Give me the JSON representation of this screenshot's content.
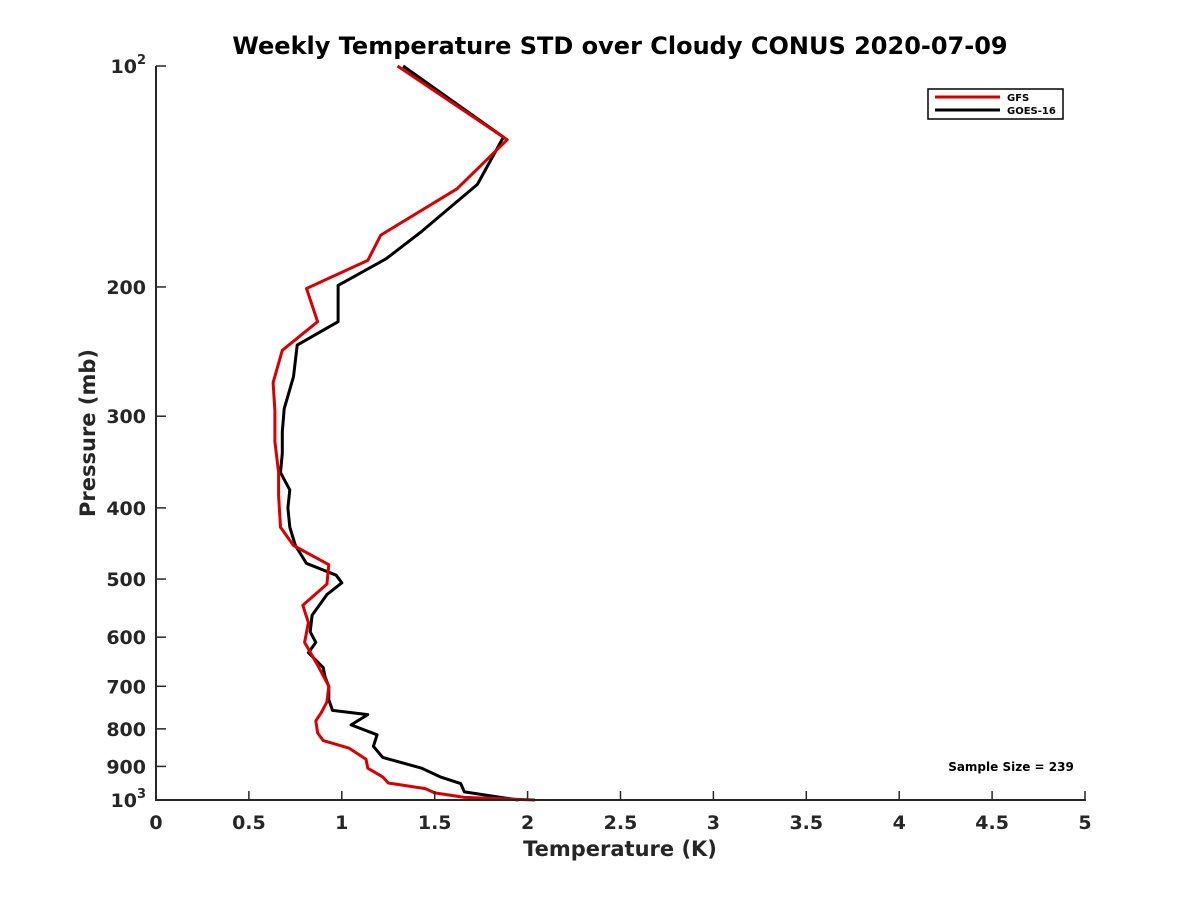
{
  "chart_data": {
    "type": "line",
    "title": "Weekly Temperature STD over Cloudy CONUS 2020-07-09",
    "xlabel": "Temperature (K)",
    "ylabel": "Pressure (mb)",
    "xlim": [
      0,
      5
    ],
    "ylim": [
      100,
      1000
    ],
    "y_scale": "log",
    "y_reversed": true,
    "grid": false,
    "legend_position": "top-right",
    "x_ticks": [
      "0",
      "0.5",
      "1",
      "1.5",
      "2",
      "2.5",
      "3",
      "3.5",
      "4",
      "4.5",
      "5"
    ],
    "x_tick_values": [
      0,
      0.5,
      1,
      1.5,
      2,
      2.5,
      3,
      3.5,
      4,
      4.5,
      5
    ],
    "y_ticks": [
      {
        "value": 100,
        "base": "10",
        "exp": "2"
      },
      {
        "value": 200,
        "label": "200"
      },
      {
        "value": 300,
        "label": "300"
      },
      {
        "value": 400,
        "label": "400"
      },
      {
        "value": 500,
        "label": "500"
      },
      {
        "value": 600,
        "label": "600"
      },
      {
        "value": 700,
        "label": "700"
      },
      {
        "value": 800,
        "label": "800"
      },
      {
        "value": 900,
        "label": "900"
      },
      {
        "value": 1000,
        "base": "10",
        "exp": "3"
      }
    ],
    "annotation": "Sample Size = 239",
    "series": [
      {
        "name": "GFS",
        "color": "#d40000",
        "x": [
          1.3,
          1.89,
          1.62,
          1.21,
          1.14,
          0.81,
          0.87,
          0.68,
          0.63,
          0.64,
          0.64,
          0.66,
          0.66,
          0.67,
          0.74,
          0.93,
          0.92,
          0.79,
          0.82,
          0.8,
          0.87,
          0.93,
          0.92,
          0.89,
          0.86,
          0.87,
          0.9,
          1.04,
          1.13,
          1.14,
          1.22,
          1.25,
          1.45,
          1.5,
          1.66,
          2.04
        ],
        "y": [
          100,
          126,
          147,
          170,
          184,
          201,
          223,
          244,
          270,
          295,
          325,
          358,
          385,
          425,
          450,
          478,
          508,
          543,
          573,
          610,
          655,
          700,
          735,
          760,
          780,
          810,
          830,
          850,
          880,
          905,
          930,
          948,
          965,
          978,
          992,
          1000
        ]
      },
      {
        "name": "GOES-16",
        "color": "#000000",
        "x": [
          1.33,
          1.87,
          1.73,
          1.43,
          1.24,
          0.98,
          0.98,
          0.76,
          0.74,
          0.69,
          0.68,
          0.68,
          0.67,
          0.72,
          0.71,
          0.72,
          0.75,
          0.81,
          0.97,
          1.0,
          0.92,
          0.84,
          0.83,
          0.86,
          0.82,
          0.9,
          0.91,
          0.93,
          0.93,
          0.95,
          1.14,
          1.05,
          1.19,
          1.17,
          1.22,
          1.43,
          1.53,
          1.64,
          1.66,
          1.95
        ],
        "y": [
          100,
          125,
          145,
          168,
          183,
          199,
          223,
          240,
          265,
          293,
          315,
          337,
          358,
          378,
          400,
          425,
          450,
          476,
          494,
          506,
          525,
          560,
          590,
          610,
          630,
          660,
          680,
          700,
          730,
          755,
          765,
          790,
          815,
          845,
          875,
          905,
          930,
          950,
          975,
          1000
        ]
      }
    ]
  }
}
